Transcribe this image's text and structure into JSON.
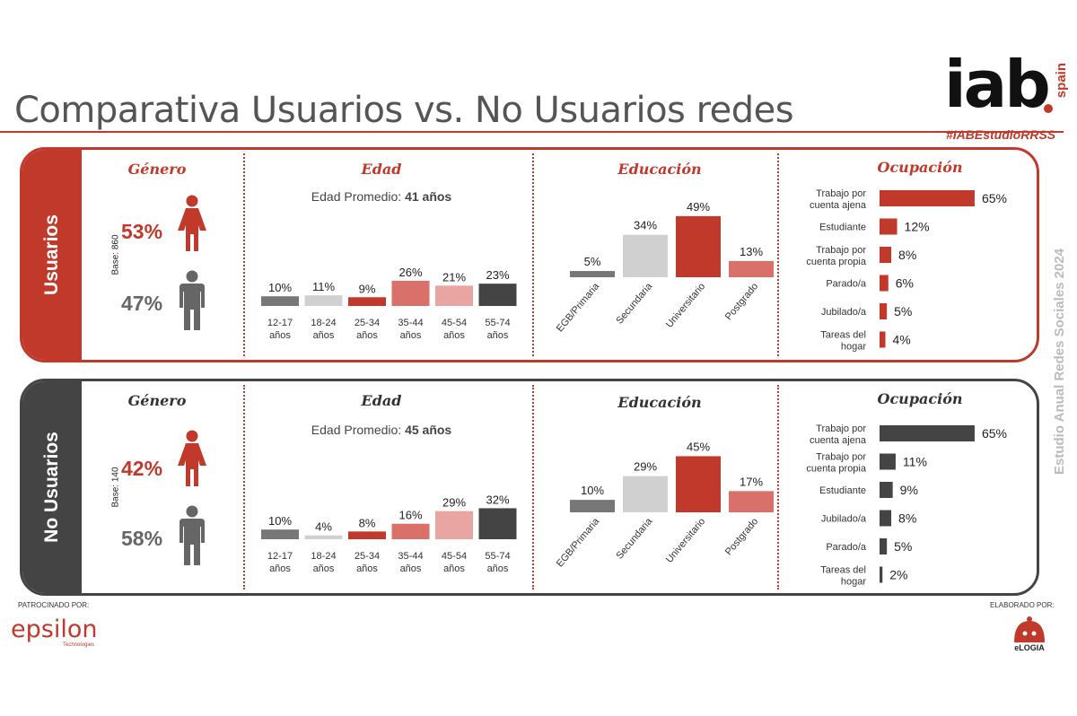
{
  "title": "Comparativa Usuarios vs. No Usuarios redes",
  "brand": {
    "logo": "iab",
    "logo_sub": "spain",
    "hashtag": "#IABEstudioRRSS"
  },
  "side_text": "Estudio Anual Redes Sociales 2024",
  "colors": {
    "red": "#c0392b",
    "dark": "#444444",
    "grey": "#777777",
    "lightgrey": "#d0d0d0",
    "salmon": "#d9706a",
    "pink": "#e8a5a2"
  },
  "sponsor": {
    "label": "PATROCINADO POR:",
    "name": "epsilon",
    "sub": "Technologies"
  },
  "made_by": {
    "label": "ELABORADO POR:",
    "name": "eLOGIA"
  },
  "chart_data": [
    {
      "panel": "Usuarios",
      "base": "Base: 860",
      "genero": {
        "title": "Género",
        "female": "53%",
        "male": "47%"
      },
      "edad": {
        "type": "bar",
        "title": "Edad",
        "avg_label": "Edad Promedio:",
        "avg_value": "41 años",
        "categories": [
          "12-17 años",
          "18-24 años",
          "25-34 años",
          "35-44 años",
          "45-54 años",
          "55-74 años"
        ],
        "tick_line1": [
          "12-17",
          "18-24",
          "25-34",
          "35-44",
          "45-54",
          "55-74"
        ],
        "tick_line2": [
          "años",
          "años",
          "años",
          "años",
          "años",
          "años"
        ],
        "values": [
          10,
          11,
          9,
          26,
          21,
          23
        ],
        "labels": [
          "10%",
          "11%",
          "9%",
          "26%",
          "21%",
          "23%"
        ]
      },
      "educacion": {
        "type": "bar",
        "title": "Educación",
        "categories": [
          "EGB/Primaria",
          "Secundaria",
          "Universitario",
          "Postgrado"
        ],
        "values": [
          5,
          34,
          49,
          13
        ],
        "labels": [
          "5%",
          "34%",
          "49%",
          "13%"
        ]
      },
      "ocupacion": {
        "type": "bar",
        "title": "Ocupación",
        "categories": [
          "Trabajo por cuenta ajena",
          "Estudiante",
          "Trabajo por cuenta propia",
          "Parado/a",
          "Jubilado/a",
          "Tareas del hogar"
        ],
        "label_line1": [
          "Trabajo por",
          "Estudiante",
          "Trabajo por",
          "Parado/a",
          "Jubilado/a",
          "Tareas del"
        ],
        "label_line2": [
          "cuenta ajena",
          "",
          "cuenta propia",
          "",
          "",
          "hogar"
        ],
        "values": [
          65,
          12,
          8,
          6,
          5,
          4
        ],
        "labels": [
          "65%",
          "12%",
          "8%",
          "6%",
          "5%",
          "4%"
        ]
      }
    },
    {
      "panel": "No Usuarios",
      "base": "Base: 140",
      "genero": {
        "title": "Género",
        "female": "42%",
        "male": "58%"
      },
      "edad": {
        "type": "bar",
        "title": "Edad",
        "avg_label": "Edad Promedio:",
        "avg_value": "45 años",
        "categories": [
          "12-17 años",
          "18-24 años",
          "25-34 años",
          "35-44 años",
          "45-54 años",
          "55-74 años"
        ],
        "tick_line1": [
          "12-17",
          "18-24",
          "25-34",
          "35-44",
          "45-54",
          "55-74"
        ],
        "tick_line2": [
          "años",
          "años",
          "años",
          "años",
          "años",
          "años"
        ],
        "values": [
          10,
          4,
          8,
          16,
          29,
          32
        ],
        "labels": [
          "10%",
          "4%",
          "8%",
          "16%",
          "29%",
          "32%"
        ]
      },
      "educacion": {
        "type": "bar",
        "title": "Educación",
        "categories": [
          "EGB/Primaria",
          "Secundaria",
          "Universitario",
          "Postgrado"
        ],
        "values": [
          10,
          29,
          45,
          17
        ],
        "labels": [
          "10%",
          "29%",
          "45%",
          "17%"
        ]
      },
      "ocupacion": {
        "type": "bar",
        "title": "Ocupación",
        "categories": [
          "Trabajo por cuenta ajena",
          "Trabajo por cuenta propia",
          "Estudiante",
          "Jubilado/a",
          "Parado/a",
          "Tareas del hogar"
        ],
        "label_line1": [
          "Trabajo por",
          "Trabajo por",
          "Estudiante",
          "Jubilado/a",
          "Parado/a",
          "Tareas del"
        ],
        "label_line2": [
          "cuenta ajena",
          "cuenta propia",
          "",
          "",
          "",
          "hogar"
        ],
        "values": [
          65,
          11,
          9,
          8,
          5,
          2
        ],
        "labels": [
          "65%",
          "11%",
          "9%",
          "8%",
          "5%",
          "2%"
        ]
      }
    }
  ]
}
